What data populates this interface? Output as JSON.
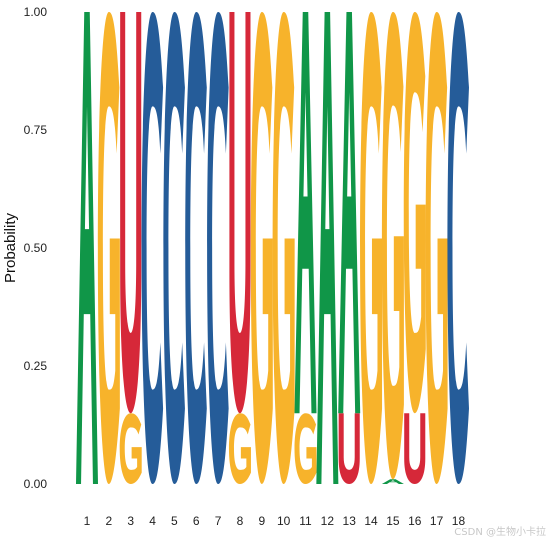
{
  "chart_data": {
    "type": "sequence-logo",
    "ylabel": "Probability",
    "ylim": [
      0,
      1
    ],
    "y_ticks": [
      "0.00",
      "0.25",
      "0.50",
      "0.75",
      "1.00"
    ],
    "positions": [
      "1",
      "2",
      "3",
      "4",
      "5",
      "6",
      "7",
      "8",
      "9",
      "10",
      "11",
      "12",
      "13",
      "14",
      "15",
      "16",
      "17",
      "18"
    ],
    "colors": {
      "A": "#109648",
      "C": "#255c99",
      "G": "#f7b32b",
      "U": "#d62839"
    },
    "columns": [
      [
        {
          "base": "A",
          "p": 1.0
        }
      ],
      [
        {
          "base": "G",
          "p": 1.0
        }
      ],
      [
        {
          "base": "G",
          "p": 0.15
        },
        {
          "base": "U",
          "p": 0.85
        }
      ],
      [
        {
          "base": "C",
          "p": 1.0
        }
      ],
      [
        {
          "base": "C",
          "p": 1.0
        }
      ],
      [
        {
          "base": "C",
          "p": 1.0
        }
      ],
      [
        {
          "base": "C",
          "p": 1.0
        }
      ],
      [
        {
          "base": "G",
          "p": 0.15
        },
        {
          "base": "U",
          "p": 0.85
        }
      ],
      [
        {
          "base": "G",
          "p": 1.0
        }
      ],
      [
        {
          "base": "G",
          "p": 1.0
        }
      ],
      [
        {
          "base": "G",
          "p": 0.15
        },
        {
          "base": "A",
          "p": 0.85
        }
      ],
      [
        {
          "base": "A",
          "p": 1.0
        }
      ],
      [
        {
          "base": "U",
          "p": 0.15
        },
        {
          "base": "A",
          "p": 0.85
        }
      ],
      [
        {
          "base": "G",
          "p": 1.0
        }
      ],
      [
        {
          "base": "A",
          "p": 0.01
        },
        {
          "base": "G",
          "p": 0.99
        }
      ],
      [
        {
          "base": "U",
          "p": 0.15
        },
        {
          "base": "G",
          "p": 0.85
        }
      ],
      [
        {
          "base": "G",
          "p": 1.0
        }
      ],
      [
        {
          "base": "C",
          "p": 1.0
        }
      ]
    ]
  },
  "watermark": "CSDN @生物小卡拉"
}
